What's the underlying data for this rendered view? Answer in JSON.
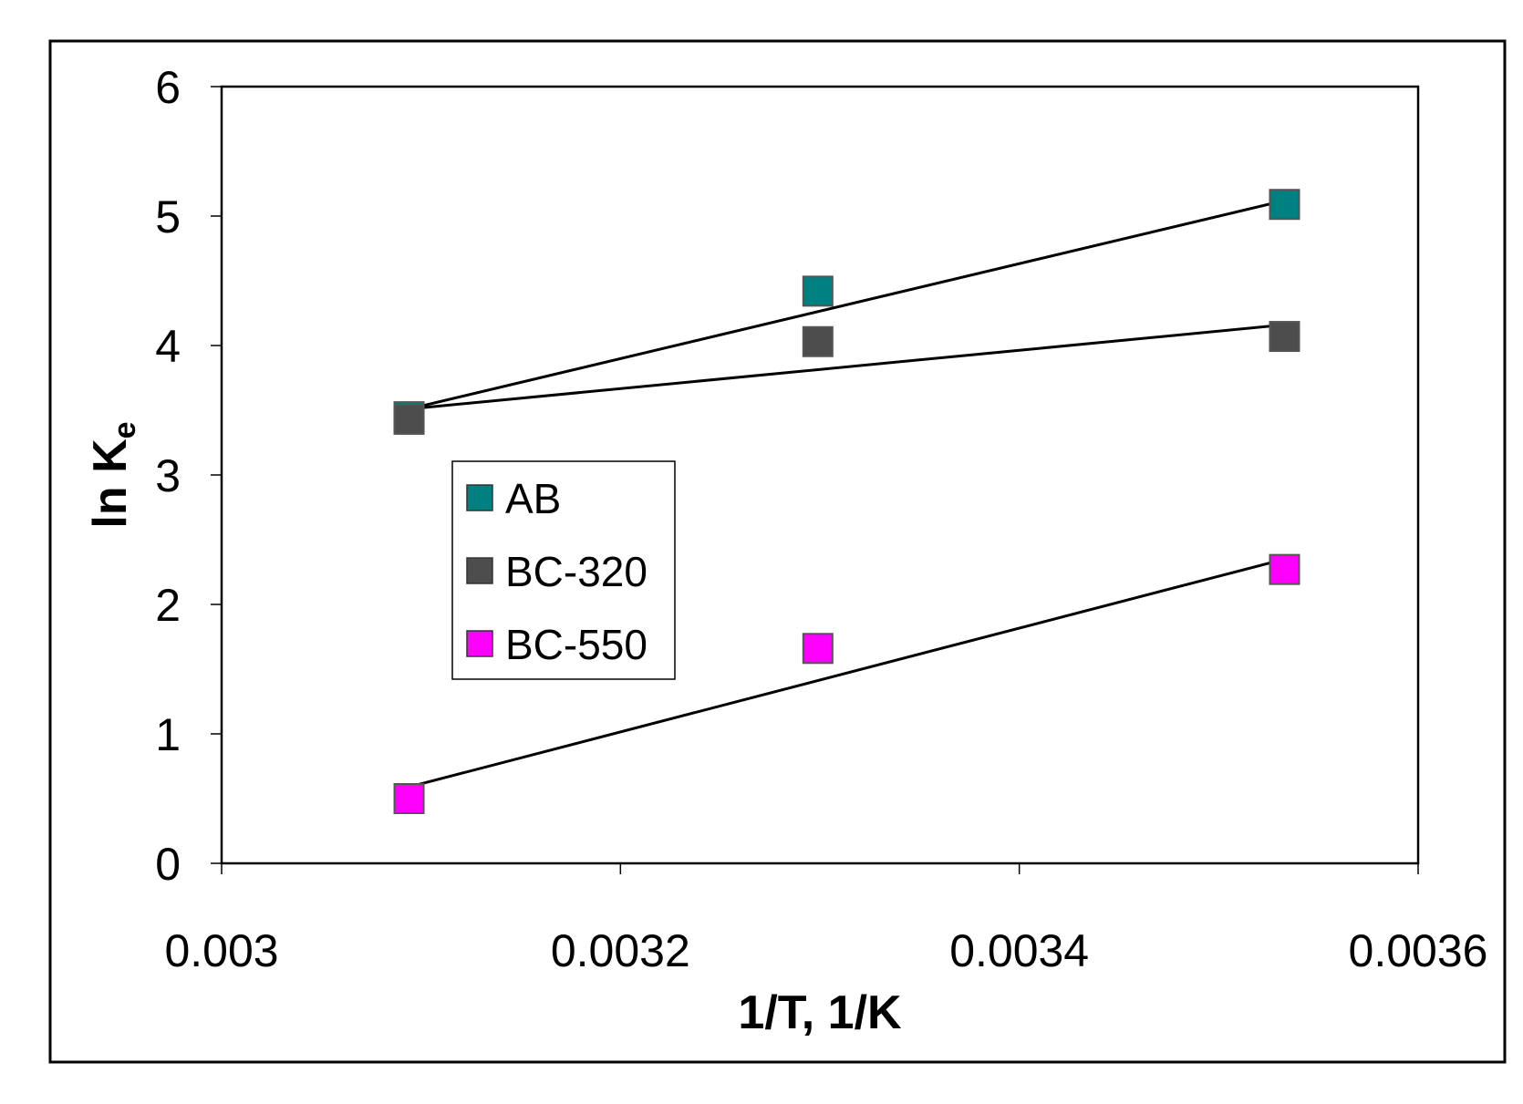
{
  "chart_data": {
    "type": "scatter",
    "xlabel": "1/T, 1/K",
    "ylabel": "ln K",
    "ylabel_subscript": "e",
    "xlim": [
      0.003,
      0.0036
    ],
    "ylim": [
      0,
      6
    ],
    "x_ticks": [
      {
        "value": 0.003,
        "label": "0.003"
      },
      {
        "value": 0.0032,
        "label": "0.0032"
      },
      {
        "value": 0.0034,
        "label": "0.0034"
      },
      {
        "value": 0.0036,
        "label": "0.0036"
      }
    ],
    "y_ticks": [
      {
        "value": 0,
        "label": "0"
      },
      {
        "value": 1,
        "label": "1"
      },
      {
        "value": 2,
        "label": "2"
      },
      {
        "value": 3,
        "label": "3"
      },
      {
        "value": 4,
        "label": "4"
      },
      {
        "value": 5,
        "label": "5"
      },
      {
        "value": 6,
        "label": "6"
      }
    ],
    "grid": false,
    "legend_position": "center-left",
    "series": [
      {
        "name": "AB",
        "color": "#008080",
        "marker": "square",
        "x": [
          0.003094,
          0.003299,
          0.003533
        ],
        "y": [
          3.45,
          4.42,
          5.09
        ],
        "trendline": {
          "x": [
            0.003094,
            0.003533
          ],
          "y": [
            3.51,
            5.12
          ]
        }
      },
      {
        "name": "BC-320",
        "color": "#4d4d4d",
        "marker": "square",
        "x": [
          0.003094,
          0.003299,
          0.003533
        ],
        "y": [
          3.43,
          4.03,
          4.07
        ],
        "trendline": {
          "x": [
            0.003094,
            0.003533
          ],
          "y": [
            3.51,
            4.16
          ]
        }
      },
      {
        "name": "BC-550",
        "color": "#ff00ff",
        "marker": "square",
        "x": [
          0.003094,
          0.003299,
          0.003533
        ],
        "y": [
          0.5,
          1.66,
          2.27
        ],
        "trendline": {
          "x": [
            0.003094,
            0.003533
          ],
          "y": [
            0.59,
            2.35
          ]
        }
      }
    ]
  }
}
